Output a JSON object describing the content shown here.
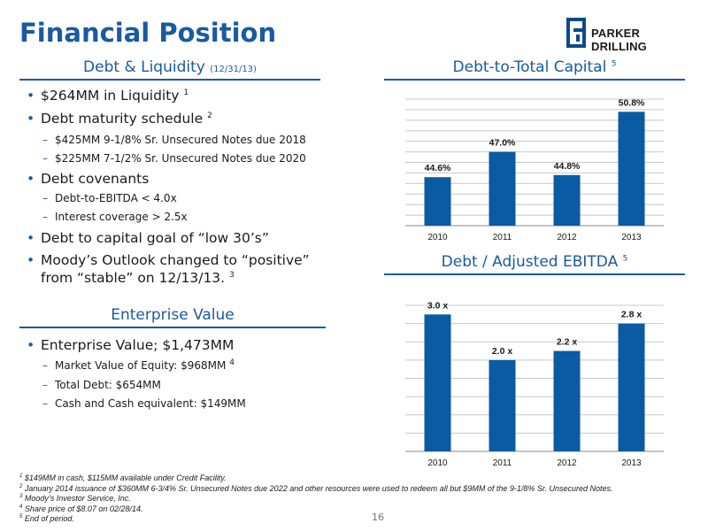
{
  "page_title": "Financial Position",
  "logo": {
    "text_first": "PARKER",
    "text_second": "DRILLING"
  },
  "debt_liquidity": {
    "heading": "Debt & Liquidity",
    "heading_note": "(12/31/13)",
    "bullets": [
      {
        "text": "$264MM in Liquidity",
        "sup": "1"
      },
      {
        "text": "Debt maturity schedule",
        "sup": "2"
      },
      {
        "text": "Debt covenants",
        "sup": ""
      },
      {
        "text": "Debt to capital goal of “low 30’s”",
        "sup": ""
      },
      {
        "text_line1": "Moody’s Outlook changed to “positive”",
        "text_line2": "from “stable” on 12/13/13.",
        "sup": "3"
      }
    ],
    "maturity_items": [
      "$425MM 9-1/8% Sr. Unsecured Notes due 2018",
      "$225MM 7-1/2% Sr. Unsecured Notes due 2020"
    ],
    "covenant_items": [
      "Debt-to-EBITDA < 4.0x",
      "Interest coverage > 2.5x"
    ]
  },
  "enterprise_value": {
    "heading": "Enterprise Value",
    "bullet": "Enterprise Value; $1,473MM",
    "items": [
      {
        "text": "Market Value of Equity: $968MM",
        "sup": "4"
      },
      {
        "text": "Total Debt: $654MM",
        "sup": ""
      },
      {
        "text": "Cash and Cash equivalent: $149MM",
        "sup": ""
      }
    ]
  },
  "chart_data": [
    {
      "type": "bar",
      "title": "Debt-to-Total Capital",
      "title_sup": "5",
      "categories": [
        "2010",
        "2011",
        "2012",
        "2013"
      ],
      "values": [
        44.6,
        47.0,
        44.8,
        50.8
      ],
      "value_labels": [
        "44.6%",
        "47.0%",
        "44.8%",
        "50.8%"
      ],
      "ylim": [
        40,
        52
      ],
      "grid": true,
      "bar_color": "#0b5aa4"
    },
    {
      "type": "bar",
      "title": "Debt / Adjusted EBITDA",
      "title_sup": "5",
      "categories": [
        "2010",
        "2011",
        "2012",
        "2013"
      ],
      "values": [
        3.0,
        2.0,
        2.2,
        2.8
      ],
      "value_labels": [
        "3.0 x",
        "2.0 x",
        "2.2 x",
        "2.8 x"
      ],
      "ylim": [
        0,
        3.2
      ],
      "grid": true,
      "bar_color": "#0b5aa4"
    }
  ],
  "footnotes": [
    {
      "num": "1",
      "text": "$149MM in cash, $115MM available under Credit Facility."
    },
    {
      "num": "2",
      "text": "January 2014 issuance of $360MM 6-3/4% Sr. Unsecured Notes due 2022 and other resources were used to redeem all but $9MM of the 9-1/8% Sr. Unsecured Notes."
    },
    {
      "num": "3",
      "text": "Moody’s Investor Service, Inc."
    },
    {
      "num": "4",
      "text": "Share price of $8.07 on 02/28/14."
    },
    {
      "num": "5",
      "text": "End of period."
    }
  ],
  "page_number": "16"
}
